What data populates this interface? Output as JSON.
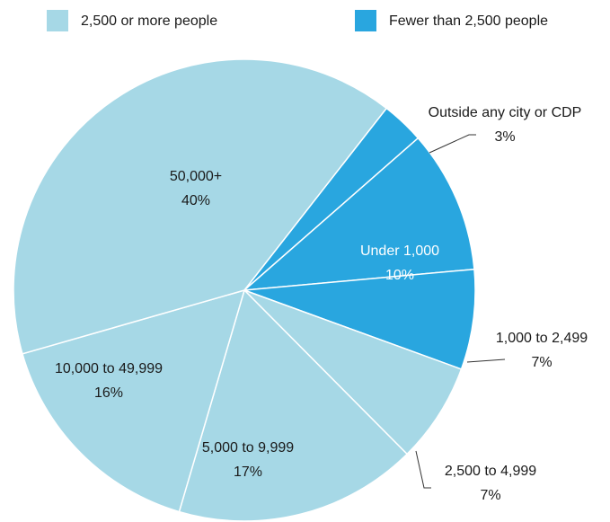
{
  "chart_data": {
    "type": "pie",
    "title": "",
    "legend": {
      "placement": "top",
      "entries": [
        {
          "label": "2,500 or more people",
          "color": "#a6d8e6"
        },
        {
          "label": "Fewer than 2,500 people",
          "color": "#29a6df"
        }
      ]
    },
    "slices": [
      {
        "label": "Outside any city or CDP",
        "value": 3,
        "value_label": "3%",
        "color": "#29a6df"
      },
      {
        "label": "Under 1,000",
        "value": 10,
        "value_label": "10%",
        "color": "#29a6df"
      },
      {
        "label": "1,000 to 2,499",
        "value": 7,
        "value_label": "7%",
        "color": "#29a6df"
      },
      {
        "label": "2,500 to 4,999",
        "value": 7,
        "value_label": "7%",
        "color": "#a6d8e6"
      },
      {
        "label": "5,000 to 9,999",
        "value": 17,
        "value_label": "17%",
        "color": "#a6d8e6"
      },
      {
        "label": "10,000 to 49,999",
        "value": 16,
        "value_label": "16%",
        "color": "#a6d8e6"
      },
      {
        "label": "50,000+",
        "value": 40,
        "value_label": "40%",
        "color": "#a6d8e6"
      }
    ]
  }
}
